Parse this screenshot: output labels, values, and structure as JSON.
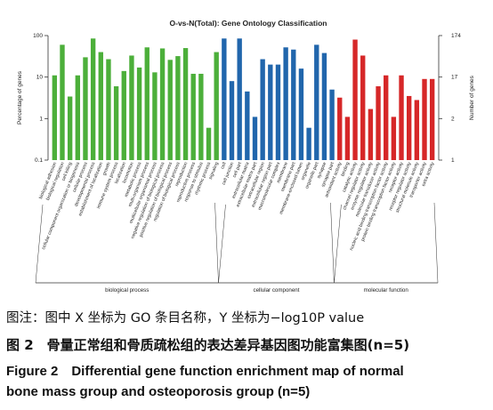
{
  "chart_data": {
    "type": "bar",
    "title": "O-vs-N(Total): Gene Ontology Classification",
    "ylabel_left": "Percentage of genes",
    "ylabel_right": "Number of genes",
    "yscale": "log",
    "ylim": [
      0.1,
      100
    ],
    "yticks_left": [
      "100",
      "10",
      "1",
      "0.1"
    ],
    "yticks_right": [
      "174",
      "17",
      "2",
      "1"
    ],
    "grid": false,
    "series": [
      {
        "name": "biological process",
        "color": "#4caf3a",
        "categories": [
          "biological adhesion",
          "biological regulation",
          "cell killing",
          "cellular component organization or biogenesis",
          "cellular process",
          "developmental process",
          "establishment of localization",
          "growth",
          "immune system process",
          "localization",
          "locomotion",
          "metabolic process",
          "multi-organism process",
          "multicellular organismal process",
          "negative regulation of biological process",
          "positive regulation of biological process",
          "regulation of biological process",
          "reproduction",
          "reproductive process",
          "response to stimulus",
          "rhythmic process",
          "signaling"
        ],
        "values": [
          11,
          60,
          3.4,
          11,
          30,
          85,
          40,
          27,
          6,
          14,
          33,
          17,
          52,
          13,
          49,
          26,
          32,
          50,
          12,
          12,
          0.6,
          40
        ]
      },
      {
        "name": "cellular component",
        "color": "#2166ac",
        "categories": [
          "cell",
          "cell junction",
          "cell part",
          "extracellular matrix",
          "extracellular matrix part",
          "extracellular region",
          "extracellular region part",
          "macromolecular complex",
          "membrane",
          "membrane part",
          "membrane-enclosed lumen",
          "organelle",
          "organelle part",
          "synapse",
          "synapse part"
        ],
        "values": [
          85,
          8,
          85,
          4.5,
          1.1,
          27,
          20,
          20,
          52,
          46,
          16,
          0.6,
          60,
          38,
          5
        ]
      },
      {
        "name": "molecular function",
        "color": "#d62728",
        "categories": [
          "antioxidant activity",
          "binding",
          "catalytic activity",
          "channel regulator activity",
          "enzyme regulator activity",
          "molecular transducer activity",
          "nucleic acid binding transcription factor activity",
          "protein binding transcription factor activity",
          "receptor activity",
          "receptor regulator activity",
          "structural molecule activity",
          "transporter activity",
          "extra activity"
        ],
        "values": [
          3.2,
          1.1,
          80,
          33,
          1.7,
          6,
          11,
          1.1,
          11,
          3.5,
          2.8,
          9,
          9
        ]
      }
    ],
    "groups": [
      "biological process",
      "cellular component",
      "molecular function"
    ]
  },
  "captions": {
    "line1": "图注：图中 X 坐标为 GO 条目名称，Y 坐标为−log10P value",
    "line2": "图 2　骨量正常组和骨质疏松组的表达差异基因图功能富集图(n=5)",
    "line3": "Figure 2　Differential gene function enrichment map of normal",
    "line4": "bone mass group and osteoporosis group (n=5)"
  }
}
